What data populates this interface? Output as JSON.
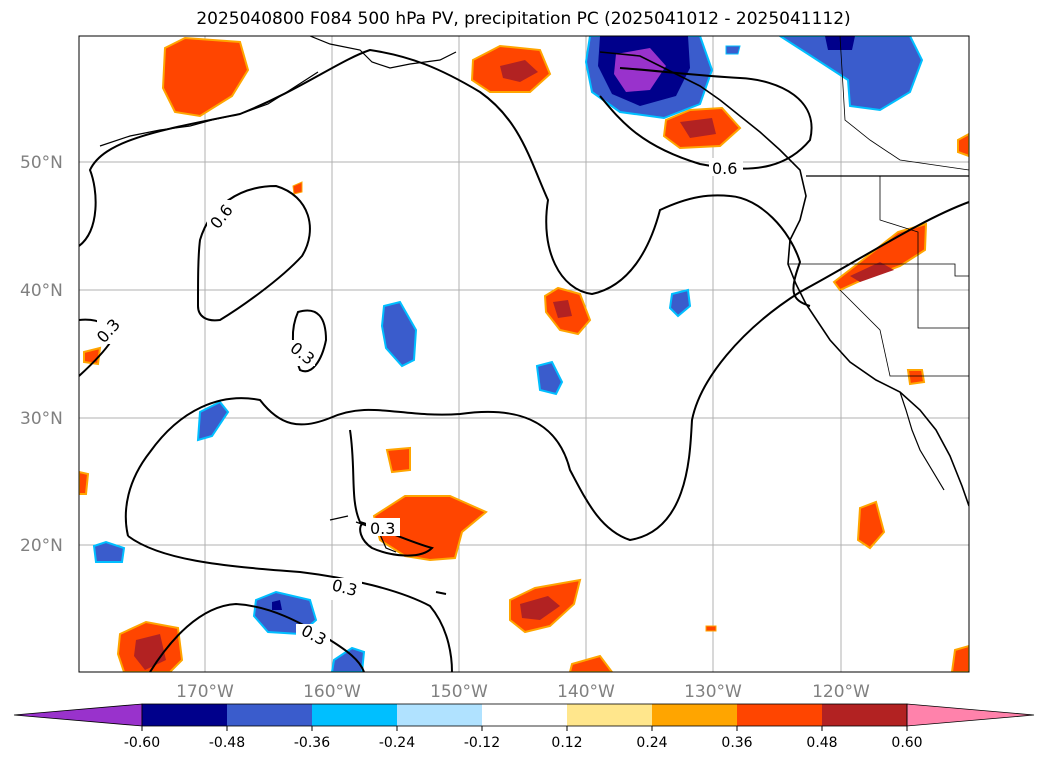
{
  "title": "2025040800 F084 500 hPa PV, precipitation PC (2025041012 - 2025041112)",
  "lat_labels": [
    "50°N",
    "40°N",
    "30°N",
    "20°N"
  ],
  "lon_labels": [
    "170°W",
    "160°W",
    "150°W",
    "140°W",
    "130°W",
    "120°W"
  ],
  "contour_labels": [
    "0.6",
    "0.6",
    "0.3",
    "0.3",
    "0.3",
    "0.3",
    "0.3"
  ],
  "colorbar": {
    "ticks": [
      "-0.60",
      "-0.48",
      "-0.36",
      "-0.24",
      "-0.12",
      "0.12",
      "0.24",
      "0.36",
      "0.48",
      "0.60"
    ],
    "colors": [
      "#9932cc",
      "#00008b",
      "#3a5ccc",
      "#00bfff",
      "#b0e2ff",
      "#ffffff",
      "#ffe68c",
      "#ffa500",
      "#ff4500",
      "#b22222",
      "#ff82ab"
    ]
  }
}
